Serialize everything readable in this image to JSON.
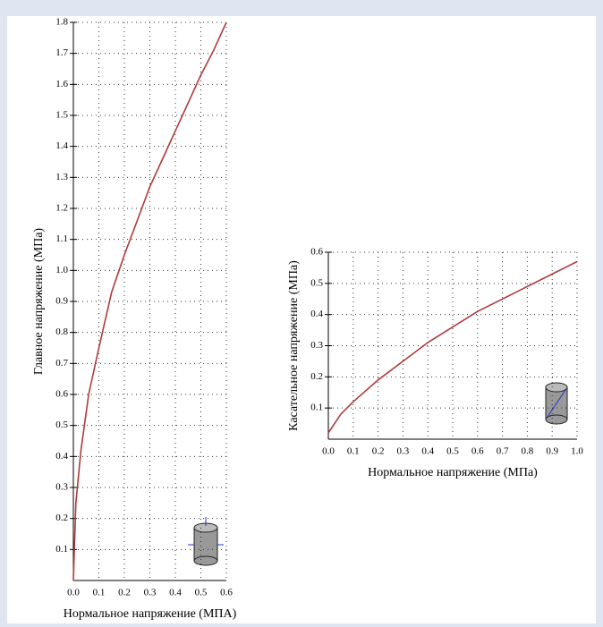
{
  "chart_data": [
    {
      "type": "line",
      "xlabel": "Нормальное напряжение (МПА)",
      "ylabel": "Главное напряжение (МПа)",
      "xlim": [
        0,
        0.6
      ],
      "ylim": [
        0,
        1.8
      ],
      "xticks": [
        {
          "value": 0,
          "label": "0.0"
        },
        0.1,
        0.2,
        0.3,
        0.4,
        0.5,
        0.6
      ],
      "yticks": [
        0.1,
        0.2,
        0.3,
        0.4,
        0.5,
        0.6,
        0.7,
        0.8,
        0.9,
        {
          "value": 1,
          "label": "1.0"
        },
        1.1,
        1.2,
        1.3,
        1.4,
        1.5,
        1.6,
        1.7,
        1.8
      ],
      "grid": true,
      "color": "#b03a3a",
      "x": [
        0,
        0.01,
        0.03,
        0.06,
        0.1,
        0.15,
        0.2,
        0.25,
        0.3,
        0.35,
        0.4,
        0.45,
        0.5,
        0.55,
        0.6
      ],
      "values": [
        0,
        0.25,
        0.42,
        0.6,
        0.75,
        0.93,
        1.05,
        1.16,
        1.27,
        1.36,
        1.45,
        1.54,
        1.63,
        1.71,
        1.8
      ]
    },
    {
      "type": "line",
      "xlabel": "Нормальное напряжение (МПа)",
      "ylabel": "Касательное напряжение (МПа)",
      "xlim": [
        0,
        1
      ],
      "ylim": [
        0,
        0.6
      ],
      "xticks": [
        {
          "value": 0,
          "label": "0.0"
        },
        0.1,
        0.2,
        0.3,
        0.4,
        0.5,
        0.6,
        0.7,
        0.8,
        0.9,
        {
          "value": 1,
          "label": "1.0"
        }
      ],
      "yticks": [
        0.1,
        0.2,
        0.3,
        0.4,
        0.5,
        0.6
      ],
      "grid": true,
      "color": "#b03a3a",
      "x": [
        0,
        0.05,
        0.1,
        0.2,
        0.3,
        0.4,
        0.5,
        0.6,
        0.7,
        0.8,
        0.9,
        1
      ],
      "values": [
        0.02,
        0.08,
        0.12,
        0.19,
        0.25,
        0.31,
        0.36,
        0.41,
        0.45,
        0.49,
        0.53,
        0.57
      ]
    }
  ]
}
